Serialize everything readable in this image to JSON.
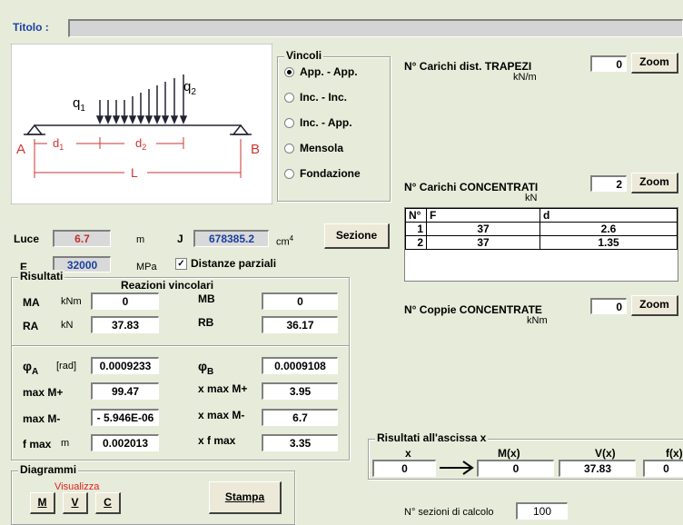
{
  "header": {
    "title_label": "Titolo :"
  },
  "diagram": {
    "q1": {
      "symbol": "q",
      "sub": "1"
    },
    "q2": {
      "symbol": "q",
      "sub": "2"
    },
    "d1": {
      "symbol": "d",
      "sub": "1"
    },
    "d2": {
      "symbol": "d",
      "sub": "2"
    },
    "L": "L",
    "A": "A",
    "B": "B"
  },
  "vincoli": {
    "title": "Vincoli",
    "options": [
      {
        "label": "App. - App.",
        "checked": true
      },
      {
        "label": "Inc. - Inc.",
        "checked": false
      },
      {
        "label": "Inc. - App.",
        "checked": false
      },
      {
        "label": "Mensola",
        "checked": false
      },
      {
        "label": "Fondazione",
        "checked": false
      }
    ]
  },
  "inputs": {
    "luce_label": "Luce",
    "luce": "6.7",
    "luce_unit": "m",
    "j_label": "J",
    "j": "678385.2",
    "j_unit": {
      "base": "cm",
      "sup": "4"
    },
    "sezione": "Sezione",
    "e_label": "E",
    "e": "32000",
    "e_unit": "MPa",
    "distanze": {
      "label": "Distanze parziali",
      "checked": true
    }
  },
  "loads": {
    "trapezi": {
      "label": "N° Carichi dist. TRAPEZI",
      "unit": "kN/m",
      "count": "0",
      "zoom": "Zoom"
    },
    "concentrati": {
      "label": "N° Carichi CONCENTRATI",
      "unit": "kN",
      "count": "2",
      "zoom": "Zoom",
      "table": {
        "header": [
          "N°",
          "F",
          "d"
        ],
        "rows": [
          [
            "1",
            "37",
            "2.6"
          ],
          [
            "2",
            "37",
            "1.35"
          ]
        ]
      }
    },
    "coppie": {
      "label": "N° Coppie CONCENTRATE",
      "unit": "kNm",
      "count": "0",
      "zoom": "Zoom"
    }
  },
  "risultati": {
    "title": "Risultati",
    "reazioni": "Reazioni vincolari",
    "ma": {
      "label": "MA",
      "unit": "kNm",
      "value": "0"
    },
    "mb": {
      "label": "MB",
      "value": "0"
    },
    "ra": {
      "label": "RA",
      "unit": "kN",
      "value": "37.83"
    },
    "rb": {
      "label": "RB",
      "value": "36.17"
    },
    "phia": {
      "symbol": "φ",
      "sub": "A",
      "unit": "[rad]",
      "value": "0.0009233"
    },
    "phib": {
      "symbol": "φ",
      "sub": "B",
      "value": "0.0009108"
    },
    "maxmp": {
      "label": "max M+",
      "value": "99.47"
    },
    "xmaxmp": {
      "label": "x max M+",
      "value": "3.95"
    },
    "maxmm": {
      "label": "max M-",
      "value": "- 5.946E-06"
    },
    "xmaxmm": {
      "label": "x max M-",
      "value": "6.7"
    },
    "fmax": {
      "label": "f max",
      "unit": "m",
      "value": "0.002013"
    },
    "xfmax": {
      "label": "x f max",
      "value": "3.35"
    }
  },
  "diagrammi": {
    "title": "Diagrammi",
    "visualizza": "Visualizza",
    "buttons": [
      "M",
      "V",
      "C"
    ],
    "stampa": "Stampa"
  },
  "ascissa": {
    "title": "Risultati all'ascissa x",
    "headers": [
      "x",
      "M(x)",
      "V(x)",
      "f(x)"
    ],
    "values": [
      "0",
      "0",
      "37.83",
      "0"
    ]
  },
  "sezioni": {
    "label": "N° sezioni di calcolo",
    "value": "100"
  }
}
